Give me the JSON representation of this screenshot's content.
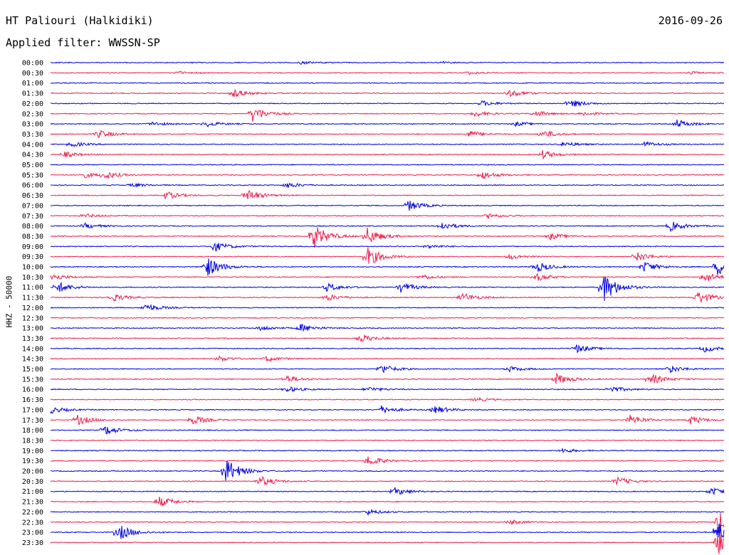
{
  "header": {
    "station": "HT Paliouri (Halkidiki)",
    "date": "2016-09-26",
    "filter": "Applied filter: WWSSN-SP"
  },
  "chart_data": {
    "type": "helicorder",
    "title": "HT Paliouri (Halkidiki)",
    "date": "2016-09-26",
    "filter": "WWSSN-SP",
    "ylabel": "HHZ - 50000",
    "row_interval_minutes": 30,
    "colors": [
      "#0000e6",
      "#ee1f4f"
    ],
    "rows": [
      {
        "label": "00:00",
        "events": [
          {
            "t": 0.37,
            "amp": 2
          },
          {
            "t": 0.58,
            "amp": 1.5
          }
        ]
      },
      {
        "label": "00:30",
        "events": [
          {
            "t": 0.19,
            "amp": 2
          },
          {
            "t": 0.62,
            "amp": 2
          },
          {
            "t": 0.95,
            "amp": 2
          }
        ]
      },
      {
        "label": "01:00",
        "events": []
      },
      {
        "label": "01:30",
        "events": [
          {
            "t": 0.27,
            "amp": 6
          },
          {
            "t": 0.68,
            "amp": 5
          }
        ]
      },
      {
        "label": "02:00",
        "events": [
          {
            "t": 0.64,
            "amp": 4
          },
          {
            "t": 0.77,
            "amp": 6
          }
        ]
      },
      {
        "label": "02:30",
        "events": [
          {
            "t": 0.3,
            "amp": 11
          },
          {
            "t": 0.63,
            "amp": 4
          },
          {
            "t": 0.72,
            "amp": 4
          },
          {
            "t": 0.79,
            "amp": 3
          }
        ]
      },
      {
        "label": "03:00",
        "events": [
          {
            "t": 0.15,
            "amp": 3
          },
          {
            "t": 0.23,
            "amp": 4
          },
          {
            "t": 0.69,
            "amp": 3
          },
          {
            "t": 0.93,
            "amp": 6
          }
        ]
      },
      {
        "label": "03:30",
        "events": [
          {
            "t": 0.07,
            "amp": 6
          },
          {
            "t": 0.62,
            "amp": 5
          },
          {
            "t": 0.73,
            "amp": 6
          }
        ]
      },
      {
        "label": "04:00",
        "events": [
          {
            "t": 0.03,
            "amp": 4
          },
          {
            "t": 0.76,
            "amp": 4
          },
          {
            "t": 0.88,
            "amp": 4
          }
        ]
      },
      {
        "label": "04:30",
        "events": [
          {
            "t": 0.02,
            "amp": 4
          },
          {
            "t": 0.73,
            "amp": 6
          }
        ]
      },
      {
        "label": "05:00",
        "events": []
      },
      {
        "label": "05:30",
        "events": [
          {
            "t": 0.05,
            "amp": 4
          },
          {
            "t": 0.08,
            "amp": 5
          },
          {
            "t": 0.64,
            "amp": 6
          }
        ]
      },
      {
        "label": "06:00",
        "events": [
          {
            "t": 0.12,
            "amp": 3
          },
          {
            "t": 0.35,
            "amp": 4
          }
        ]
      },
      {
        "label": "06:30",
        "events": [
          {
            "t": 0.17,
            "amp": 6
          },
          {
            "t": 0.29,
            "amp": 9
          }
        ]
      },
      {
        "label": "07:00",
        "events": [
          {
            "t": 0.53,
            "amp": 8
          }
        ]
      },
      {
        "label": "07:30",
        "events": [
          {
            "t": 0.05,
            "amp": 3
          },
          {
            "t": 0.65,
            "amp": 4
          }
        ]
      },
      {
        "label": "08:00",
        "events": [
          {
            "t": 0.05,
            "amp": 4
          },
          {
            "t": 0.58,
            "amp": 6
          },
          {
            "t": 0.92,
            "amp": 7
          }
        ]
      },
      {
        "label": "08:30",
        "events": [
          {
            "t": 0.39,
            "amp": 18
          },
          {
            "t": 0.47,
            "amp": 12
          },
          {
            "t": 0.74,
            "amp": 5
          }
        ]
      },
      {
        "label": "09:00",
        "events": [
          {
            "t": 0.24,
            "amp": 8
          },
          {
            "t": 0.56,
            "amp": 3
          }
        ]
      },
      {
        "label": "09:30",
        "events": [
          {
            "t": 0.47,
            "amp": 14
          },
          {
            "t": 0.68,
            "amp": 4
          },
          {
            "t": 0.87,
            "amp": 7
          }
        ]
      },
      {
        "label": "10:00",
        "events": [
          {
            "t": 0.23,
            "amp": 16
          },
          {
            "t": 0.72,
            "amp": 8
          },
          {
            "t": 0.88,
            "amp": 8
          },
          {
            "t": 0.99,
            "amp": 12
          }
        ]
      },
      {
        "label": "10:30",
        "events": [
          {
            "t": 0.0,
            "amp": 6
          },
          {
            "t": 0.55,
            "amp": 4
          },
          {
            "t": 0.72,
            "amp": 6
          },
          {
            "t": 0.97,
            "amp": 8
          }
        ]
      },
      {
        "label": "11:00",
        "events": [
          {
            "t": 0.01,
            "amp": 8
          },
          {
            "t": 0.41,
            "amp": 6
          },
          {
            "t": 0.52,
            "amp": 7
          },
          {
            "t": 0.82,
            "amp": 22
          }
        ]
      },
      {
        "label": "11:30",
        "events": [
          {
            "t": 0.09,
            "amp": 6
          },
          {
            "t": 0.41,
            "amp": 5
          },
          {
            "t": 0.61,
            "amp": 7
          },
          {
            "t": 0.96,
            "amp": 10
          }
        ]
      },
      {
        "label": "12:00",
        "events": [
          {
            "t": 0.14,
            "amp": 6
          }
        ]
      },
      {
        "label": "12:30",
        "events": []
      },
      {
        "label": "13:00",
        "events": [
          {
            "t": 0.31,
            "amp": 4
          },
          {
            "t": 0.37,
            "amp": 6
          }
        ]
      },
      {
        "label": "13:30",
        "events": [
          {
            "t": 0.46,
            "amp": 6
          }
        ]
      },
      {
        "label": "14:00",
        "events": [
          {
            "t": 0.78,
            "amp": 6
          },
          {
            "t": 0.97,
            "amp": 5
          }
        ]
      },
      {
        "label": "14:30",
        "events": [
          {
            "t": 0.25,
            "amp": 4
          },
          {
            "t": 0.32,
            "amp": 4
          }
        ]
      },
      {
        "label": "15:00",
        "events": [
          {
            "t": 0.49,
            "amp": 7
          },
          {
            "t": 0.68,
            "amp": 4
          },
          {
            "t": 0.92,
            "amp": 5
          }
        ]
      },
      {
        "label": "15:30",
        "events": [
          {
            "t": 0.35,
            "amp": 5
          },
          {
            "t": 0.75,
            "amp": 8
          },
          {
            "t": 0.89,
            "amp": 8
          }
        ]
      },
      {
        "label": "16:00",
        "events": [
          {
            "t": 0.35,
            "amp": 4
          },
          {
            "t": 0.47,
            "amp": 4
          },
          {
            "t": 0.83,
            "amp": 5
          }
        ]
      },
      {
        "label": "16:30",
        "events": [
          {
            "t": 0.63,
            "amp": 3
          }
        ]
      },
      {
        "label": "17:00",
        "events": [
          {
            "t": 0.0,
            "amp": 5
          },
          {
            "t": 0.49,
            "amp": 6
          },
          {
            "t": 0.57,
            "amp": 6
          }
        ]
      },
      {
        "label": "17:30",
        "events": [
          {
            "t": 0.04,
            "amp": 7
          },
          {
            "t": 0.21,
            "amp": 7
          },
          {
            "t": 0.86,
            "amp": 7
          },
          {
            "t": 0.95,
            "amp": 6
          }
        ]
      },
      {
        "label": "18:00",
        "events": [
          {
            "t": 0.08,
            "amp": 7
          }
        ]
      },
      {
        "label": "18:30",
        "events": []
      },
      {
        "label": "19:00",
        "events": [
          {
            "t": 0.76,
            "amp": 3
          }
        ]
      },
      {
        "label": "19:30",
        "events": [
          {
            "t": 0.47,
            "amp": 8
          }
        ]
      },
      {
        "label": "20:00",
        "events": [
          {
            "t": 0.26,
            "amp": 18
          }
        ]
      },
      {
        "label": "20:30",
        "events": [
          {
            "t": 0.31,
            "amp": 8
          },
          {
            "t": 0.84,
            "amp": 6
          }
        ]
      },
      {
        "label": "21:00",
        "events": [
          {
            "t": 0.51,
            "amp": 6
          },
          {
            "t": 0.98,
            "amp": 6
          }
        ]
      },
      {
        "label": "21:30",
        "events": [
          {
            "t": 0.16,
            "amp": 8
          }
        ]
      },
      {
        "label": "22:00",
        "events": [
          {
            "t": 0.47,
            "amp": 4
          }
        ]
      },
      {
        "label": "22:30",
        "events": [
          {
            "t": 0.68,
            "amp": 4
          },
          {
            "t": 0.99,
            "amp": 16
          }
        ]
      },
      {
        "label": "23:00",
        "events": [
          {
            "t": 0.1,
            "amp": 12
          },
          {
            "t": 0.99,
            "amp": 16
          }
        ]
      },
      {
        "label": "23:30",
        "events": [
          {
            "t": 0.99,
            "amp": 20
          }
        ]
      }
    ]
  }
}
